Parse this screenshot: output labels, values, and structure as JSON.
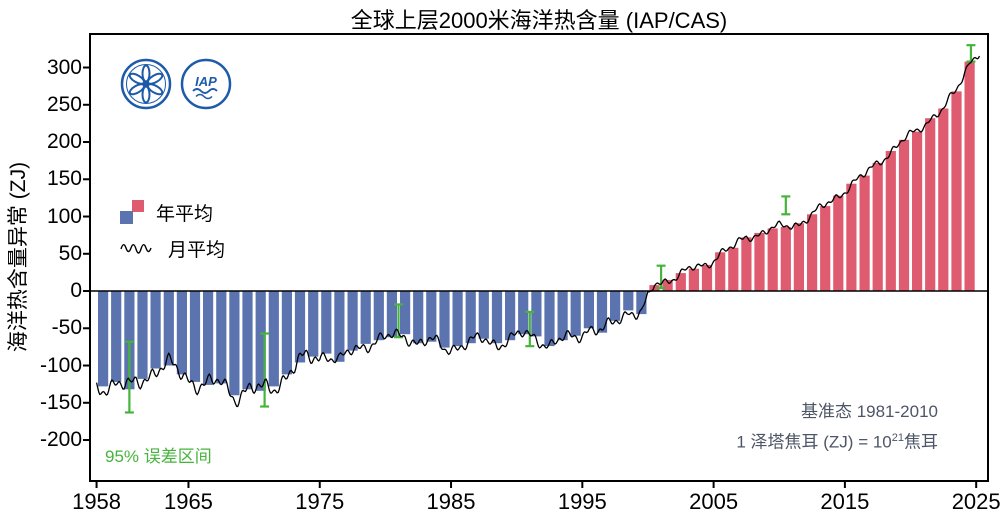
{
  "title": "全球上层2000米海洋热含量 (IAP/CAS)",
  "y_axis_label": "海洋热含量异常 (ZJ)",
  "legend": {
    "annual": "年平均",
    "monthly": "月平均"
  },
  "notes": {
    "error": "95% 误差区间",
    "baseline": "基准态 1981-2010",
    "unit_prefix": "1 泽塔焦耳 (ZJ) = 10",
    "unit_sup": "21",
    "unit_suffix": "焦耳"
  },
  "logos": [
    {
      "name": "CAS",
      "text": ""
    },
    {
      "name": "IAP",
      "text": "IAP"
    }
  ],
  "colors": {
    "annual_positive": "#df5b70",
    "annual_negative": "#5b74b0",
    "monthly_line": "#000000",
    "error_bar": "#46b43c",
    "note_gray": "#4d5566",
    "logo_blue": "#1d5aa8"
  },
  "chart_data": {
    "type": "bar",
    "title": "全球上层2000米海洋热含量 (IAP/CAS)",
    "xlabel": "",
    "ylabel": "海洋热含量异常 (ZJ)",
    "x_range": [
      1957.5,
      2025.9
    ],
    "y_range": [
      -255,
      345
    ],
    "x_ticks": [
      1958,
      1965,
      1975,
      1985,
      1995,
      2005,
      2015,
      2025
    ],
    "y_ticks": [
      -200,
      -150,
      -100,
      -50,
      0,
      50,
      100,
      150,
      200,
      250,
      300
    ],
    "grid": false,
    "series": [
      {
        "name": "年平均",
        "type": "bar",
        "years": [
          1958,
          1959,
          1960,
          1961,
          1962,
          1963,
          1964,
          1965,
          1966,
          1967,
          1968,
          1969,
          1970,
          1971,
          1972,
          1973,
          1974,
          1975,
          1976,
          1977,
          1978,
          1979,
          1980,
          1981,
          1982,
          1983,
          1984,
          1985,
          1986,
          1987,
          1988,
          1989,
          1990,
          1991,
          1992,
          1993,
          1994,
          1995,
          1996,
          1997,
          1998,
          1999,
          2000,
          2001,
          2002,
          2003,
          2004,
          2005,
          2006,
          2007,
          2008,
          2009,
          2010,
          2011,
          2012,
          2013,
          2014,
          2015,
          2016,
          2017,
          2018,
          2019,
          2020,
          2021,
          2022,
          2023,
          2024
        ],
        "values": [
          -128,
          -122,
          -132,
          -118,
          -104,
          -100,
          -112,
          -122,
          -126,
          -124,
          -140,
          -132,
          -134,
          -128,
          -112,
          -96,
          -88,
          -84,
          -95,
          -80,
          -71,
          -66,
          -62,
          -58,
          -70,
          -68,
          -76,
          -74,
          -70,
          -64,
          -70,
          -66,
          -58,
          -61,
          -74,
          -66,
          -60,
          -50,
          -56,
          -40,
          -26,
          -31,
          8,
          15,
          24,
          30,
          35,
          52,
          58,
          72,
          78,
          84,
          86,
          91,
          103,
          114,
          128,
          144,
          155,
          172,
          188,
          203,
          214,
          232,
          245,
          268,
          308
        ]
      },
      {
        "name": "月平均",
        "type": "line",
        "note": "monthly curve estimated as interpolation of annual means with short-term variability"
      }
    ],
    "monthly_line": {
      "start": 1958.0,
      "end": 2025.25,
      "end_value": 322,
      "wiggle_amplitude_zj": [
        16,
        12,
        8
      ]
    },
    "error_bars_95pct": [
      {
        "x": 1960.5,
        "low": -163,
        "high": -68
      },
      {
        "x": 1970.8,
        "low": -155,
        "high": -57
      },
      {
        "x": 1981.0,
        "low": -62,
        "high": -18
      },
      {
        "x": 1991.0,
        "low": -74,
        "high": -28
      },
      {
        "x": 2001.0,
        "low": 4,
        "high": 34
      },
      {
        "x": 2010.5,
        "low": 103,
        "high": 127
      },
      {
        "x": 2024.6,
        "low": 308,
        "high": 330
      }
    ]
  }
}
